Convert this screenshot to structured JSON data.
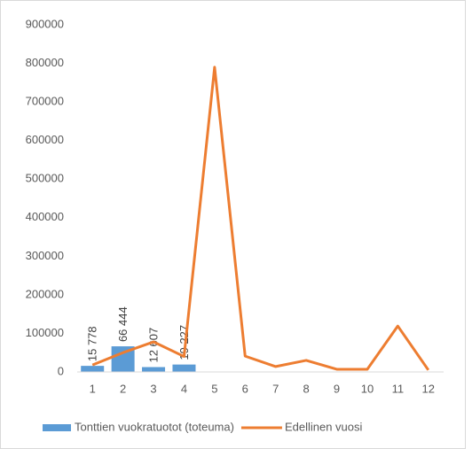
{
  "chart_data": {
    "type": "combo",
    "categories": [
      1,
      2,
      3,
      4,
      5,
      6,
      7,
      8,
      9,
      10,
      11,
      12
    ],
    "series": [
      {
        "name": "Tonttien vuokratuotot (toteuma)",
        "type": "bar",
        "color": "#5b9bd5",
        "values": [
          15778,
          66444,
          12607,
          19227,
          null,
          null,
          null,
          null,
          null,
          null,
          null,
          null
        ],
        "value_labels": [
          "15 778",
          "66 444",
          "12 607",
          "19 227",
          null,
          null,
          null,
          null,
          null,
          null,
          null,
          null
        ]
      },
      {
        "name": "Edellinen vuosi",
        "type": "line",
        "color": "#ed7d31",
        "values": [
          18000,
          50000,
          78000,
          40000,
          790000,
          41000,
          14000,
          30000,
          7000,
          7000,
          119000,
          5000
        ]
      }
    ],
    "ylim": [
      0,
      900000
    ],
    "yticks": [
      0,
      100000,
      200000,
      300000,
      400000,
      500000,
      600000,
      700000,
      800000,
      900000
    ],
    "grid": false,
    "legend": "bottom"
  }
}
